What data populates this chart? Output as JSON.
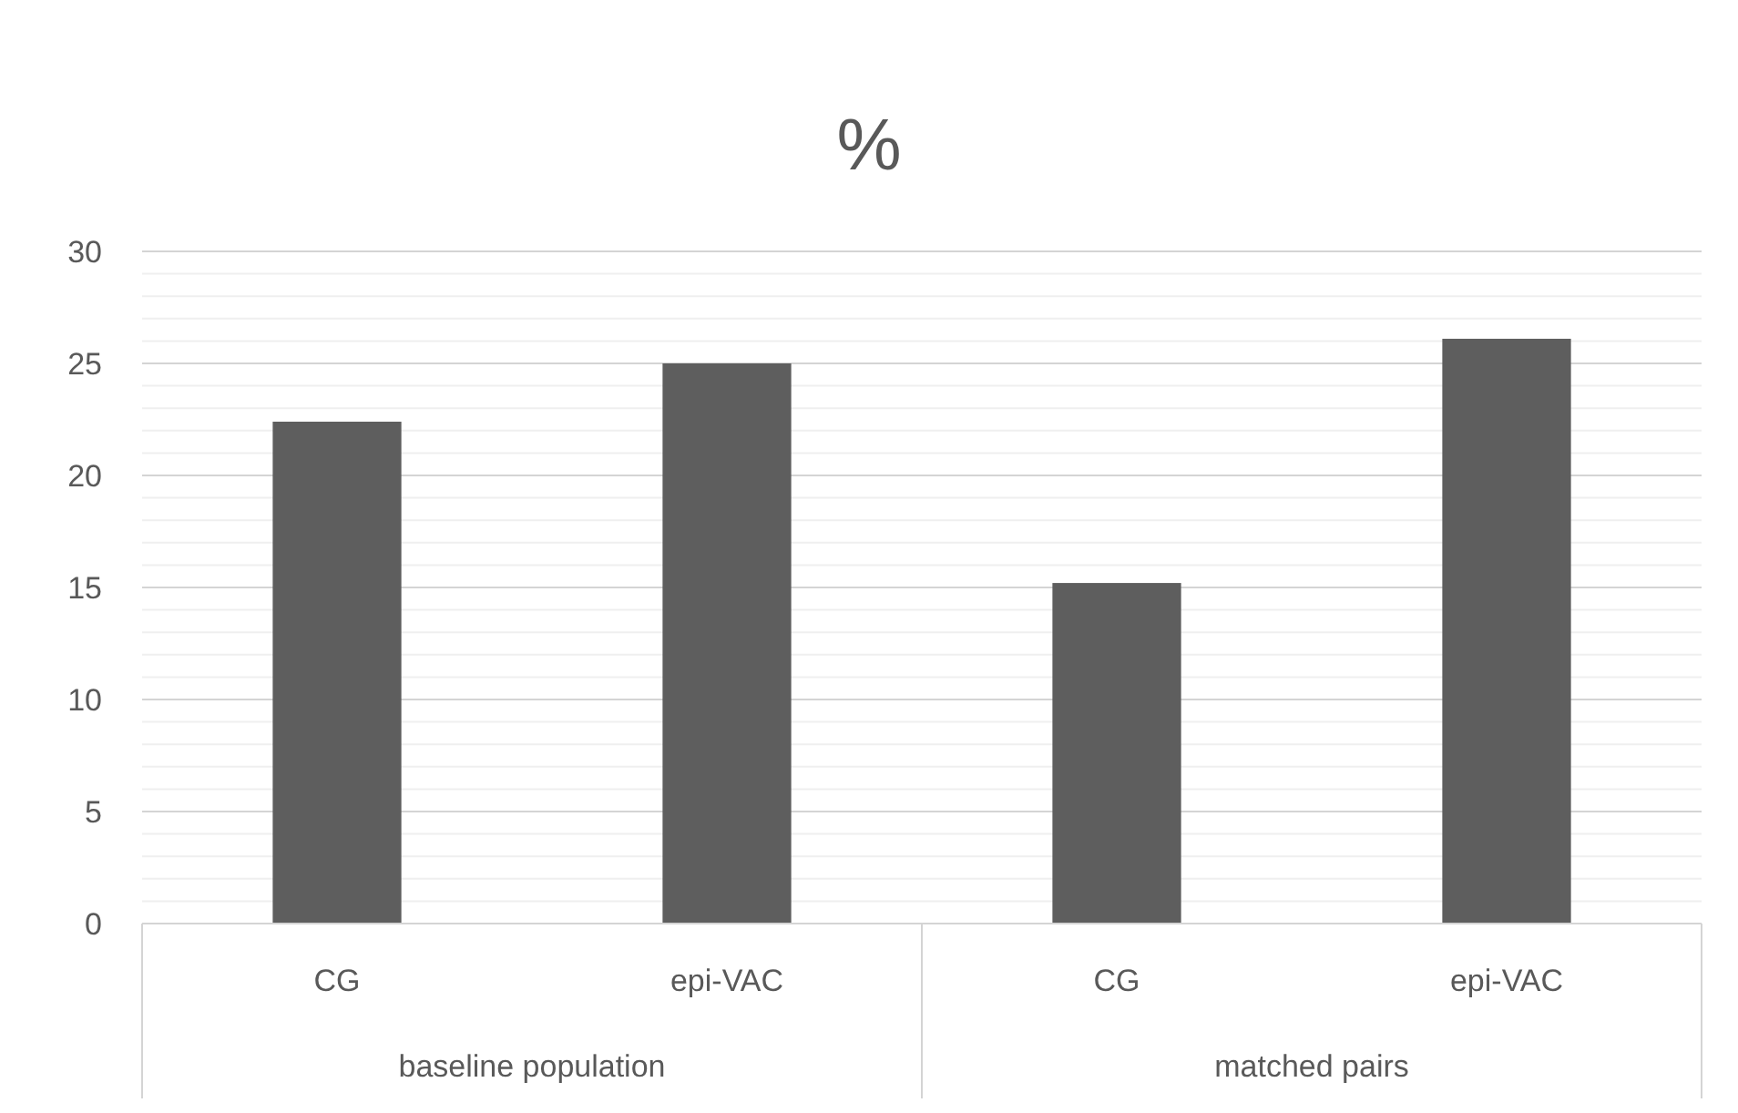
{
  "chart_data": {
    "type": "bar",
    "title": "%",
    "categories": [
      "CG",
      "epi-VAC",
      "CG",
      "epi-VAC"
    ],
    "values": [
      22.4,
      25.0,
      15.2,
      26.1
    ],
    "color": "#5e5e5e",
    "ylim": [
      0,
      30
    ],
    "yticks": [
      0,
      {
        "value": 1,
        "label": null
      },
      {
        "value": 2,
        "label": null
      },
      {
        "value": 3,
        "label": null
      },
      {
        "value": 4,
        "label": null
      },
      5,
      {
        "value": 6,
        "label": null
      },
      {
        "value": 7,
        "label": null
      },
      {
        "value": 8,
        "label": null
      },
      {
        "value": 9,
        "label": null
      },
      10,
      {
        "value": 11,
        "label": null
      },
      {
        "value": 12,
        "label": null
      },
      {
        "value": 13,
        "label": null
      },
      {
        "value": 14,
        "label": null
      },
      15,
      {
        "value": 16,
        "label": null
      },
      {
        "value": 17,
        "label": null
      },
      {
        "value": 18,
        "label": null
      },
      {
        "value": 19,
        "label": null
      },
      20,
      {
        "value": 21,
        "label": null
      },
      {
        "value": 22,
        "label": null
      },
      {
        "value": 23,
        "label": null
      },
      {
        "value": 24,
        "label": null
      },
      25,
      {
        "value": 26,
        "label": null
      },
      {
        "value": 27,
        "label": null
      },
      {
        "value": 28,
        "label": null
      },
      {
        "value": 29,
        "label": null
      },
      30
    ],
    "grid": true,
    "annotations": [
      "baseline population",
      "matched pairs"
    ]
  }
}
